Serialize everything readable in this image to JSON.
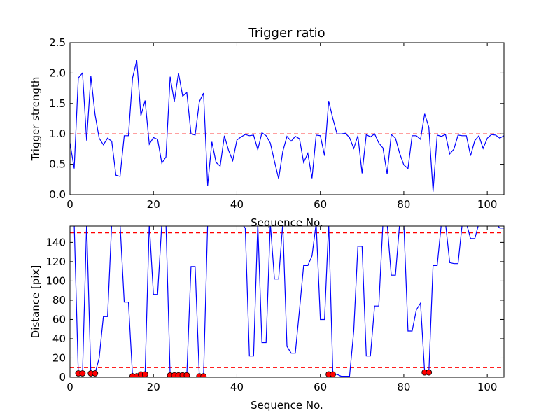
{
  "chart_data": [
    {
      "type": "line",
      "title": "Trigger ratio",
      "xlabel": "Sequence No.",
      "ylabel": "Trigger strength",
      "xlim": [
        0,
        104
      ],
      "ylim": [
        0,
        2.5
      ],
      "xticks": [
        0,
        20,
        40,
        60,
        80,
        100
      ],
      "yticks": [
        0.0,
        0.5,
        1.0,
        1.5,
        2.0,
        2.5
      ],
      "xtick_labels": [
        "0",
        "20",
        "40",
        "60",
        "80",
        "100"
      ],
      "ytick_labels": [
        "0.0",
        "0.5",
        "1.0",
        "1.5",
        "2.0",
        "2.5"
      ],
      "grid": false,
      "reference_lines": [
        {
          "y": 1.0,
          "color": "#ff0000",
          "style": "dashed"
        }
      ],
      "series": [
        {
          "color": "#0000ff",
          "x": [
            0,
            1,
            2,
            3,
            4,
            5,
            6,
            7,
            8,
            9,
            10,
            11,
            12,
            13,
            14,
            15,
            16,
            17,
            18,
            19,
            20,
            21,
            22,
            23,
            24,
            25,
            26,
            27,
            28,
            29,
            30,
            31,
            32,
            33,
            34,
            35,
            36,
            37,
            38,
            39,
            40,
            41,
            42,
            43,
            44,
            45,
            46,
            47,
            48,
            49,
            50,
            51,
            52,
            53,
            54,
            55,
            56,
            57,
            58,
            59,
            60,
            61,
            62,
            63,
            64,
            65,
            66,
            67,
            68,
            69,
            70,
            71,
            72,
            73,
            74,
            75,
            76,
            77,
            78,
            79,
            80,
            81,
            82,
            83,
            84,
            85,
            86,
            87,
            88,
            89,
            90,
            91,
            92,
            93,
            94,
            95,
            96,
            97,
            98,
            99,
            100,
            101,
            102,
            103,
            104
          ],
          "y": [
            0.85,
            0.43,
            1.92,
            2.0,
            0.89,
            1.95,
            1.32,
            0.93,
            0.82,
            0.93,
            0.88,
            0.32,
            0.3,
            0.97,
            0.97,
            1.92,
            2.21,
            1.3,
            1.55,
            0.83,
            0.94,
            0.91,
            0.52,
            0.62,
            1.94,
            1.53,
            2.0,
            1.62,
            1.68,
            1.0,
            0.98,
            1.53,
            1.67,
            0.15,
            0.87,
            0.53,
            0.47,
            0.97,
            0.73,
            0.56,
            0.9,
            0.95,
            0.99,
            0.97,
            0.98,
            0.74,
            1.02,
            0.97,
            0.85,
            0.55,
            0.26,
            0.71,
            0.96,
            0.88,
            0.96,
            0.92,
            0.53,
            0.68,
            0.27,
            0.98,
            0.97,
            0.64,
            1.54,
            1.25,
            1.0,
            1.0,
            1.01,
            0.94,
            0.76,
            0.97,
            0.35,
            0.99,
            0.95,
            1.0,
            0.85,
            0.77,
            0.34,
            0.99,
            0.93,
            0.68,
            0.49,
            0.43,
            0.97,
            0.97,
            0.91,
            1.33,
            1.11,
            0.05,
            0.98,
            0.96,
            0.99,
            0.67,
            0.75,
            0.98,
            0.97,
            0.97,
            0.64,
            0.89,
            0.97,
            0.76,
            0.93,
            0.99,
            0.98,
            0.93,
            0.97
          ]
        }
      ]
    },
    {
      "type": "line",
      "title": "",
      "xlabel": "Sequence No.",
      "ylabel": "Distance [pix]",
      "xlim": [
        0,
        104
      ],
      "ylim": [
        0,
        157
      ],
      "xticks": [
        0,
        20,
        40,
        60,
        80,
        100
      ],
      "yticks": [
        0,
        20,
        40,
        60,
        80,
        100,
        120,
        140
      ],
      "xtick_labels": [
        "0",
        "20",
        "40",
        "60",
        "80",
        "100"
      ],
      "ytick_labels": [
        "0",
        "20",
        "40",
        "60",
        "80",
        "100",
        "120",
        "140"
      ],
      "grid": false,
      "reference_lines": [
        {
          "y": 150,
          "color": "#ff0000",
          "style": "dashed"
        },
        {
          "y": 10,
          "color": "#ff0000",
          "style": "dashed"
        }
      ],
      "series": [
        {
          "color": "#0000ff",
          "x": [
            0,
            1,
            2,
            3,
            4,
            5,
            6,
            7,
            8,
            9,
            10,
            11,
            12,
            13,
            14,
            15,
            16,
            17,
            18,
            19,
            20,
            21,
            22,
            23,
            24,
            25,
            26,
            27,
            28,
            29,
            30,
            31,
            32,
            33,
            34,
            35,
            36,
            37,
            38,
            39,
            40,
            41,
            42,
            43,
            44,
            45,
            46,
            47,
            48,
            49,
            50,
            51,
            52,
            53,
            54,
            55,
            56,
            57,
            58,
            59,
            60,
            61,
            62,
            63,
            64,
            65,
            66,
            67,
            68,
            69,
            70,
            71,
            72,
            73,
            74,
            75,
            76,
            77,
            78,
            79,
            80,
            81,
            82,
            83,
            84,
            85,
            86,
            87,
            88,
            89,
            90,
            91,
            92,
            93,
            94,
            95,
            96,
            97,
            98,
            99,
            100,
            101,
            102,
            103,
            104
          ],
          "y": [
            160,
            160,
            4,
            4,
            160,
            4,
            4,
            20,
            63,
            63,
            160,
            160,
            160,
            78,
            78,
            1,
            1,
            3,
            3,
            160,
            86,
            86,
            160,
            160,
            2,
            2,
            2,
            2,
            2,
            115,
            115,
            1,
            1,
            160,
            160,
            160,
            160,
            160,
            160,
            160,
            160,
            160,
            155,
            22,
            22,
            160,
            36,
            36,
            160,
            102,
            102,
            160,
            32,
            25,
            25,
            70,
            116,
            116,
            126,
            160,
            60,
            60,
            160,
            3,
            3,
            1,
            1,
            1,
            48,
            136,
            136,
            22,
            22,
            74,
            74,
            160,
            160,
            106,
            106,
            160,
            160,
            48,
            48,
            70,
            77,
            5,
            5,
            116,
            116,
            160,
            160,
            119,
            118,
            118,
            160,
            160,
            144,
            144,
            160,
            160,
            160,
            160,
            160,
            155,
            155
          ]
        },
        {
          "name": "",
          "style": "markers",
          "color": "#ff0000",
          "x": [
            2,
            3,
            5,
            6,
            15,
            16,
            17,
            18,
            24,
            25,
            26,
            27,
            28,
            31,
            32,
            62,
            63,
            85,
            86
          ],
          "y": [
            4,
            4,
            4,
            4,
            1,
            1,
            3,
            3,
            2,
            2,
            2,
            2,
            2,
            1,
            1,
            3,
            3,
            5,
            5
          ]
        }
      ]
    }
  ]
}
